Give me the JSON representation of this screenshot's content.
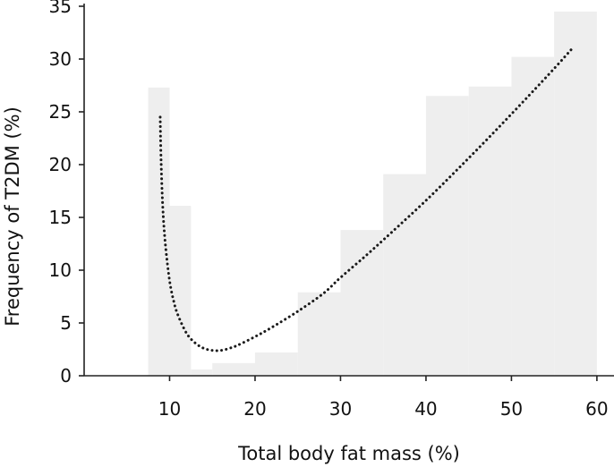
{
  "chart_data": {
    "type": "bar",
    "title": "",
    "xlabel": "Total body fat mass (%)",
    "ylabel": "Frequency of T2DM (%)",
    "xlim": [
      0,
      62
    ],
    "ylim": [
      0,
      35
    ],
    "x_ticks": [
      10,
      20,
      30,
      40,
      50,
      60
    ],
    "y_ticks": [
      0,
      5,
      10,
      15,
      20,
      25,
      30,
      35
    ],
    "grid": false,
    "legend": "none",
    "series": [
      {
        "type": "histogram",
        "bins": [
          {
            "x0": 7.5,
            "x1": 10,
            "value": 27.3
          },
          {
            "x0": 10,
            "x1": 12.5,
            "value": 16.1
          },
          {
            "x0": 12.5,
            "x1": 15,
            "value": 0.6
          },
          {
            "x0": 15,
            "x1": 20,
            "value": 1.2
          },
          {
            "x0": 20,
            "x1": 25,
            "value": 2.2
          },
          {
            "x0": 25,
            "x1": 30,
            "value": 7.9
          },
          {
            "x0": 30,
            "x1": 35,
            "value": 13.8
          },
          {
            "x0": 35,
            "x1": 40,
            "value": 19.1
          },
          {
            "x0": 40,
            "x1": 45,
            "value": 26.5
          },
          {
            "x0": 45,
            "x1": 50,
            "value": 27.4
          },
          {
            "x0": 50,
            "x1": 55,
            "value": 30.2
          },
          {
            "x0": 55,
            "x1": 60,
            "value": 34.5
          }
        ],
        "color": "#eeeeee"
      },
      {
        "type": "line",
        "style": "dotted",
        "color": "#1a1a1a",
        "points": [
          [
            8.9,
            24.5
          ],
          [
            9.0,
            20.5
          ],
          [
            9.2,
            16.0
          ],
          [
            9.5,
            12.5
          ],
          [
            10.0,
            9.0
          ],
          [
            10.5,
            7.0
          ],
          [
            11.0,
            5.7
          ],
          [
            12.0,
            4.0
          ],
          [
            13.0,
            3.1
          ],
          [
            14.0,
            2.6
          ],
          [
            15.0,
            2.4
          ],
          [
            16.0,
            2.4
          ],
          [
            17.0,
            2.6
          ],
          [
            18.0,
            2.9
          ],
          [
            20.0,
            3.7
          ],
          [
            22.0,
            4.6
          ],
          [
            25.0,
            6.1
          ],
          [
            28.0,
            7.8
          ],
          [
            30.0,
            9.3
          ],
          [
            33.0,
            11.4
          ],
          [
            36.0,
            13.6
          ],
          [
            40.0,
            16.6
          ],
          [
            44.0,
            19.8
          ],
          [
            48.0,
            23.1
          ],
          [
            52.0,
            26.5
          ],
          [
            55.0,
            29.1
          ],
          [
            57.0,
            30.9
          ]
        ]
      }
    ]
  }
}
